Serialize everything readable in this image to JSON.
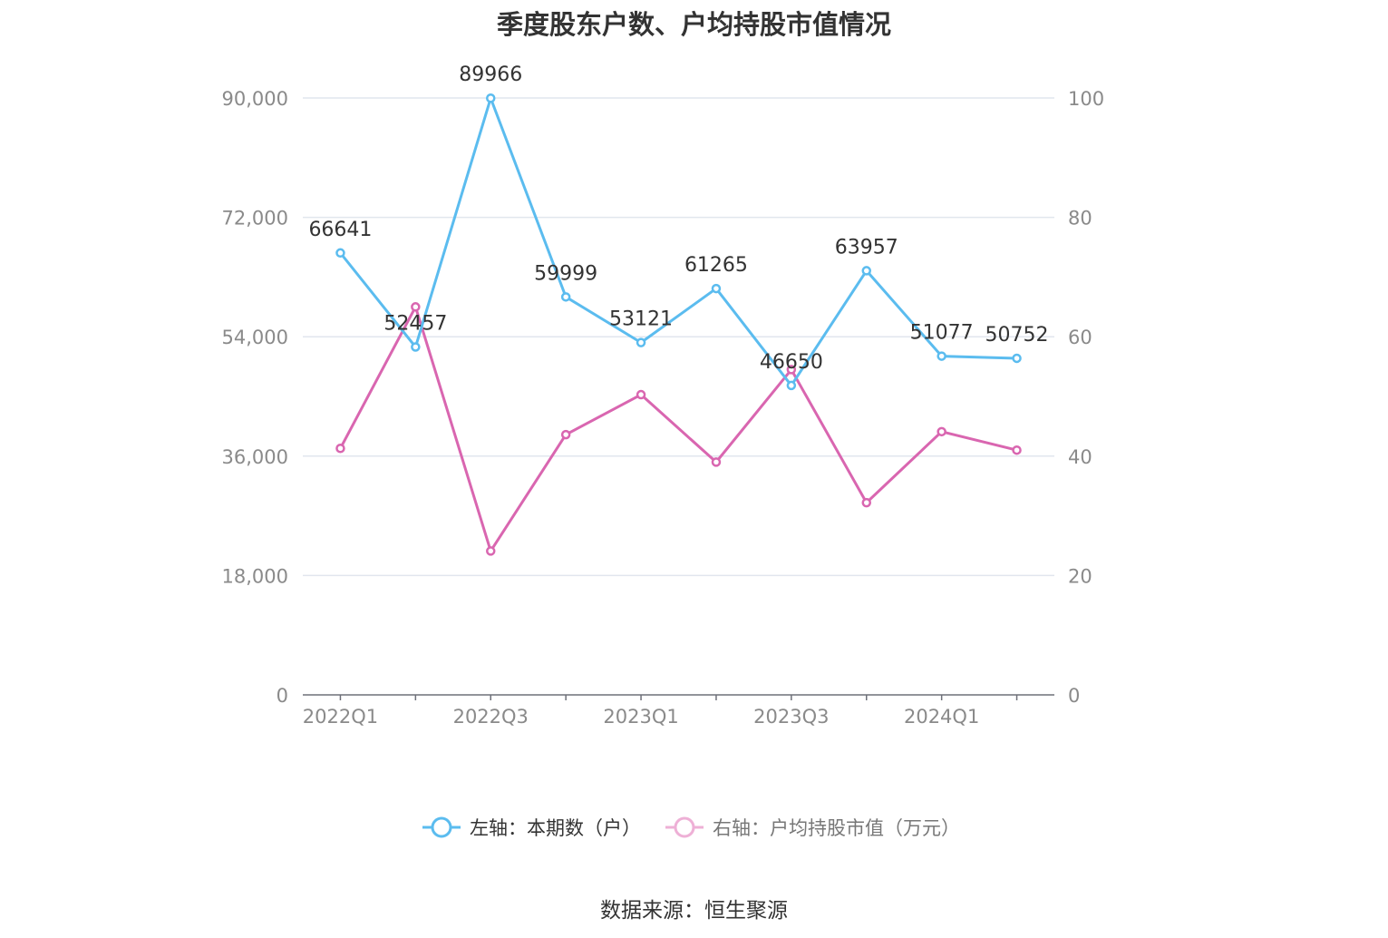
{
  "chart_data": {
    "type": "line",
    "title": "季度股东户数、户均持股市值情况",
    "categories": [
      "2022Q1",
      "2022Q2",
      "2022Q3",
      "2022Q4",
      "2023Q1",
      "2023Q2",
      "2023Q3",
      "2023Q4",
      "2024Q1",
      "2024Q2"
    ],
    "x_tick_labels": [
      "2022Q1",
      "2022Q3",
      "2023Q1",
      "2023Q3",
      "2024Q1"
    ],
    "left_axis": {
      "ylim": [
        0,
        90000
      ],
      "ticks": [
        "0",
        "18,000",
        "36,000",
        "54,000",
        "72,000",
        "90,000"
      ]
    },
    "right_axis": {
      "ylim": [
        0,
        100
      ],
      "ticks": [
        "0",
        "20",
        "40",
        "60",
        "80",
        "100"
      ]
    },
    "grid": true,
    "legend_position": "bottom",
    "series": [
      {
        "name": "左轴：本期数（户）",
        "axis": "left",
        "color": "#5bbcef",
        "values": [
          66641,
          52457,
          89966,
          59999,
          53121,
          61265,
          46650,
          63957,
          51077,
          50752
        ],
        "labels": [
          "66641",
          "52457",
          "89966",
          "59999",
          "53121",
          "61265",
          "46650",
          "63957",
          "51077",
          "50752"
        ]
      },
      {
        "name": "右轴：户均持股市值（万元）",
        "axis": "right",
        "color": "#d966b0",
        "values": [
          41.3,
          65.0,
          24.1,
          43.6,
          50.3,
          39.0,
          54.5,
          32.2,
          44.1,
          41.0
        ]
      }
    ]
  },
  "footer": {
    "source": "数据来源：恒生聚源"
  }
}
